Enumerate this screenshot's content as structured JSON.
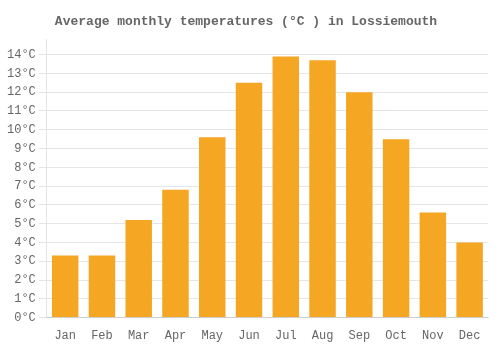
{
  "chart_data": {
    "type": "bar",
    "title": "Average monthly temperatures (°C ) in Lossiemouth",
    "categories": [
      "Jan",
      "Feb",
      "Mar",
      "Apr",
      "May",
      "Jun",
      "Jul",
      "Aug",
      "Sep",
      "Oct",
      "Nov",
      "Dec"
    ],
    "values": [
      3.3,
      3.3,
      5.2,
      6.8,
      9.6,
      12.5,
      13.9,
      13.7,
      12.0,
      9.5,
      5.6,
      4.0
    ],
    "color": "#F5A623",
    "ylim": [
      0,
      14.8
    ],
    "yticks": [
      {
        "value": 0,
        "label": "0°C"
      },
      {
        "value": 1,
        "label": "1°C"
      },
      {
        "value": 2,
        "label": "2°C"
      },
      {
        "value": 3,
        "label": "3°C"
      },
      {
        "value": 4,
        "label": "4°C"
      },
      {
        "value": 5,
        "label": "5°C"
      },
      {
        "value": 6,
        "label": "6°C"
      },
      {
        "value": 7,
        "label": "7°C"
      },
      {
        "value": 8,
        "label": "8°C"
      },
      {
        "value": 9,
        "label": "9°C"
      },
      {
        "value": 10,
        "label": "10°C"
      },
      {
        "value": 11,
        "label": "11°C"
      },
      {
        "value": 12,
        "label": "12°C"
      },
      {
        "value": 13,
        "label": "13°C"
      },
      {
        "value": 14,
        "label": "14°C"
      }
    ],
    "grid": true
  }
}
